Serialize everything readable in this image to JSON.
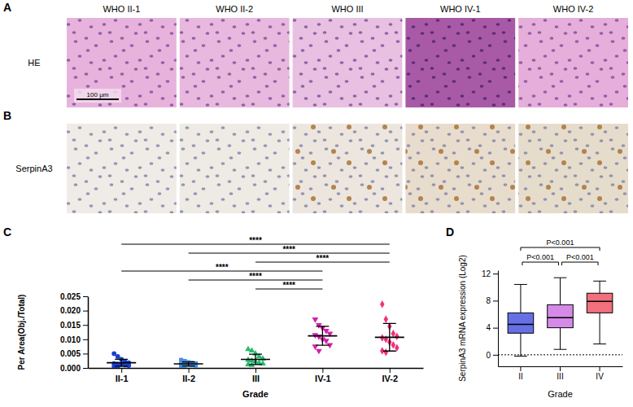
{
  "figure": {
    "panel_letters": [
      "A",
      "B"
    ],
    "columns": [
      "WHO II-1",
      "WHO II-2",
      "WHO III",
      "WHO IV-1",
      "WHO IV-2"
    ],
    "rows": [
      "HE",
      "SerpinA3"
    ],
    "scale_bar": "100 μm"
  },
  "chart_data": [
    {
      "type": "dot",
      "letter": "C",
      "x_label": "Grade",
      "y_label": "Per Area(Obj./Total)",
      "categories": [
        "II-1",
        "II-2",
        "III",
        "IV-1",
        "IV-2"
      ],
      "colors": [
        "#1a3fd0",
        "#4a8fe0",
        "#2eb872",
        "#d61fa8",
        "#f0307e"
      ],
      "markers": [
        "circle",
        "square",
        "triangle",
        "triangle-down",
        "diamond"
      ],
      "values": [
        [
          0.005,
          0.004,
          0.003,
          0.0022,
          0.0018,
          0.0015,
          0.0013,
          0.0012,
          0.001,
          0.0008,
          0.0006,
          0.0004
        ],
        [
          0.0028,
          0.0024,
          0.002,
          0.0018,
          0.0016,
          0.0014,
          0.0012,
          0.0011,
          0.001,
          0.0008,
          0.0006,
          0.0005
        ],
        [
          0.0065,
          0.006,
          0.005,
          0.004,
          0.0032,
          0.0028,
          0.0025,
          0.0022,
          0.0018,
          0.0015,
          0.0012,
          0.001
        ],
        [
          0.017,
          0.015,
          0.014,
          0.013,
          0.012,
          0.0115,
          0.011,
          0.01,
          0.0095,
          0.008,
          0.0075,
          0.006
        ],
        [
          0.0222,
          0.017,
          0.0145,
          0.012,
          0.011,
          0.0105,
          0.01,
          0.009,
          0.008,
          0.007,
          0.006,
          0.0055
        ]
      ],
      "mean": [
        0.0018,
        0.0014,
        0.003,
        0.0112,
        0.0107
      ],
      "sd": [
        0.0012,
        0.0007,
        0.0018,
        0.0033,
        0.0048
      ],
      "ylim": [
        0,
        0.025
      ],
      "yticks": [
        {
          "value": 0,
          "label": "0.000"
        },
        {
          "value": 0.005,
          "label": "0.005"
        },
        {
          "value": 0.01,
          "label": "0.010"
        },
        {
          "value": 0.015,
          "label": "0.015"
        },
        {
          "value": 0.02,
          "label": "0.020"
        },
        {
          "value": 0.025,
          "label": "0.025"
        }
      ],
      "comparisons": [
        {
          "pair": [
            0,
            4
          ],
          "label": "****"
        },
        {
          "pair": [
            1,
            4
          ],
          "label": "****"
        },
        {
          "pair": [
            2,
            4
          ],
          "label": "****"
        },
        {
          "pair": [
            0,
            3
          ],
          "label": "****"
        },
        {
          "pair": [
            1,
            3
          ],
          "label": "****"
        },
        {
          "pair": [
            2,
            3
          ],
          "label": "****"
        }
      ]
    },
    {
      "type": "box",
      "letter": "D",
      "x_label": "Grade",
      "y_label": "SerpinA3 mRNA expression (Log2)",
      "categories": [
        "II",
        "III",
        "IV"
      ],
      "colors": [
        "#6670e6",
        "#d58ae8",
        "#f26f7e"
      ],
      "min": [
        -0.2,
        0.8,
        1.6
      ],
      "q1": [
        3.2,
        4.0,
        6.2
      ],
      "median": [
        4.5,
        5.5,
        7.9
      ],
      "q3": [
        6.2,
        7.4,
        9.1
      ],
      "max": [
        10.4,
        11.4,
        10.9
      ],
      "ylim": [
        -1.7,
        12.5
      ],
      "yticks": [
        0,
        4,
        8,
        12
      ],
      "reference_line": 0,
      "line_style": "dotted",
      "comparisons": [
        {
          "pair": [
            0,
            2
          ],
          "label": "P<0.001"
        },
        {
          "pair": [
            0,
            1
          ],
          "label": "P<0.001"
        },
        {
          "pair": [
            1,
            2
          ],
          "label": "P<0.001"
        }
      ]
    }
  ]
}
